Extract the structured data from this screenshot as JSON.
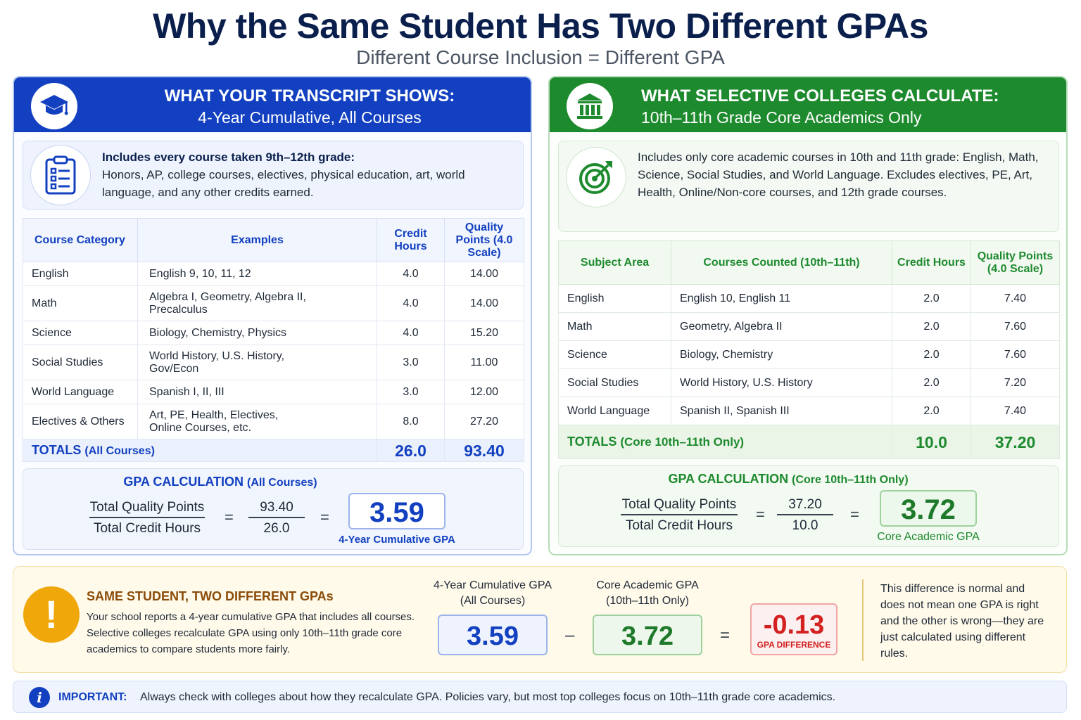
{
  "title": "Why the Same Student Has Two Different GPAs",
  "subtitle": "Different Course Inclusion = Different GPA",
  "left": {
    "icon": "graduation-cap-icon",
    "header_line1": "WHAT YOUR TRANSCRIPT SHOWS:",
    "header_line2": "4-Year Cumulative, All Courses",
    "info_icon": "clipboard-checklist-icon",
    "info_bold": "Includes every course taken 9th–12th grade:",
    "info_text": "Honors, AP, college courses, electives, physical education, art, world language, and any other credits earned.",
    "columns": [
      "Course Category",
      "Examples",
      "Credit Hours",
      "Quality Points (4.0 Scale)"
    ],
    "rows": [
      {
        "category": "English",
        "examples": "English 9, 10, 11, 12",
        "credits": "4.0",
        "points": "14.00"
      },
      {
        "category": "Math",
        "examples": "Algebra I, Geometry, Algebra II, Precalculus",
        "credits": "4.0",
        "points": "14.00"
      },
      {
        "category": "Science",
        "examples": "Biology, Chemistry, Physics",
        "credits": "4.0",
        "points": "15.20"
      },
      {
        "category": "Social Studies",
        "examples": "World History, U.S. History, Gov/Econ",
        "credits": "3.0",
        "points": "11.00"
      },
      {
        "category": "World Language",
        "examples": "Spanish I, II, III",
        "credits": "3.0",
        "points": "12.00"
      },
      {
        "category": "Electives & Others",
        "examples": "Art, PE, Health, Electives, Online Courses, etc.",
        "credits": "8.0",
        "points": "27.20"
      }
    ],
    "totals_label": "TOTALS",
    "totals_sub": "(All Courses)",
    "totals_credits": "26.0",
    "totals_points": "93.40",
    "calc_title": "GPA CALCULATION",
    "calc_sub": "(All Courses)",
    "calc_num_label": "Total Quality Points",
    "calc_den_label": "Total Credit Hours",
    "calc_num": "93.40",
    "calc_den": "26.0",
    "eq": "=",
    "result": "3.59",
    "result_label": "4-Year Cumulative GPA"
  },
  "right": {
    "icon": "college-building-icon",
    "header_line1": "WHAT SELECTIVE COLLEGES CALCULATE:",
    "header_line2": "10th–11th Grade Core Academics Only",
    "info_icon": "target-arrow-icon",
    "info_text": "Includes only core academic courses in 10th and 11th grade: English, Math, Science, Social Studies, and World Language. Excludes electives, PE, Art, Health, Online/Non-core courses, and 12th grade courses.",
    "columns": [
      "Subject Area",
      "Courses Counted (10th–11th)",
      "Credit Hours",
      "Quality Points (4.0 Scale)"
    ],
    "rows": [
      {
        "category": "English",
        "examples": "English 10, English 11",
        "credits": "2.0",
        "points": "7.40"
      },
      {
        "category": "Math",
        "examples": "Geometry, Algebra II",
        "credits": "2.0",
        "points": "7.60"
      },
      {
        "category": "Science",
        "examples": "Biology, Chemistry",
        "credits": "2.0",
        "points": "7.60"
      },
      {
        "category": "Social Studies",
        "examples": "World History, U.S. History",
        "credits": "2.0",
        "points": "7.20"
      },
      {
        "category": "World Language",
        "examples": "Spanish II, Spanish III",
        "credits": "2.0",
        "points": "7.40"
      }
    ],
    "totals_label": "TOTALS",
    "totals_sub": "(Core 10th–11th Only)",
    "totals_credits": "10.0",
    "totals_points": "37.20",
    "calc_title": "GPA CALCULATION",
    "calc_sub": "(Core 10th–11th Only)",
    "calc_num_label": "Total Quality Points",
    "calc_den_label": "Total Credit Hours",
    "calc_num": "37.20",
    "calc_den": "10.0",
    "eq": "=",
    "result": "3.72",
    "result_label": "Core Academic GPA"
  },
  "compare": {
    "icon": "exclamation-icon",
    "title": "SAME STUDENT, TWO DIFFERENT GPAs",
    "desc": "Your school reports a 4-year cumulative GPA that includes all courses. Selective colleges recalculate GPA using only 10th–11th grade core academics to compare students more fairly.",
    "gpa1_label1": "4-Year Cumulative GPA",
    "gpa1_label2": "(All Courses)",
    "gpa1": "3.59",
    "minus": "–",
    "gpa2_label1": "Core Academic GPA",
    "gpa2_label2": "(10th–11th Only)",
    "gpa2": "3.72",
    "equals": "=",
    "diff": "-0.13",
    "diff_label": "GPA DIFFERENCE",
    "note": "This difference is normal and does not mean one GPA is right and the other is wrong—they are just calculated using different rules."
  },
  "important": {
    "icon": "info-icon",
    "label": "IMPORTANT:",
    "text": "Always check with colleges about how they recalculate GPA. Policies vary, but most top colleges focus on 10th–11th grade core academics."
  },
  "colors": {
    "blue": "#1240c0",
    "green": "#1e8a2e",
    "navy": "#0b1f4d",
    "red": "#d32020",
    "amber": "#f0a70a"
  }
}
